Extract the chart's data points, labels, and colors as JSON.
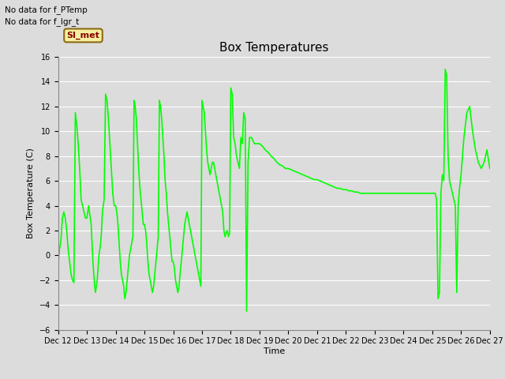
{
  "title": "Box Temperatures",
  "ylabel": "Box Temperature (C)",
  "xlabel": "Time",
  "ylim": [
    -6,
    16
  ],
  "yticks": [
    -6,
    -4,
    -2,
    0,
    2,
    4,
    6,
    8,
    10,
    12,
    14,
    16
  ],
  "line_color": "#00FF00",
  "line_width": 1.2,
  "bg_color": "#DCDCDC",
  "annotations": [
    "No data for f_PTemp",
    "No data for f_lgr_t"
  ],
  "annotation_box_label": "SI_met",
  "x_tick_labels": [
    "Dec 12",
    "Dec 13",
    "Dec 14",
    "Dec 15",
    "Dec 16",
    "Dec 17",
    "Dec 18",
    "Dec 19",
    "Dec 20",
    "Dec 21",
    "Dec 22",
    "Dec 23",
    "Dec 24",
    "Dec 25",
    "Dec 26",
    "Dec 27"
  ],
  "data_x": [
    0.0,
    0.05,
    0.1,
    0.15,
    0.2,
    0.25,
    0.3,
    0.35,
    0.4,
    0.45,
    0.5,
    0.55,
    0.6,
    0.65,
    0.7,
    0.75,
    0.8,
    0.85,
    0.9,
    0.95,
    1.0,
    1.03,
    1.06,
    1.09,
    1.12,
    1.15,
    1.18,
    1.21,
    1.24,
    1.27,
    1.3,
    1.33,
    1.36,
    1.39,
    1.42,
    1.45,
    1.48,
    1.51,
    1.54,
    1.57,
    1.6,
    1.65,
    1.7,
    1.75,
    1.8,
    1.85,
    1.9,
    1.95,
    2.0,
    2.04,
    2.08,
    2.12,
    2.16,
    2.2,
    2.24,
    2.28,
    2.32,
    2.36,
    2.4,
    2.44,
    2.48,
    2.52,
    2.56,
    2.6,
    2.64,
    2.68,
    2.72,
    2.76,
    2.8,
    2.84,
    2.88,
    2.92,
    2.96,
    3.0,
    3.04,
    3.08,
    3.12,
    3.16,
    3.2,
    3.24,
    3.28,
    3.32,
    3.36,
    3.4,
    3.44,
    3.48,
    3.52,
    3.56,
    3.6,
    3.64,
    3.68,
    3.72,
    3.76,
    3.8,
    3.84,
    3.88,
    3.92,
    3.96,
    4.0,
    4.04,
    4.08,
    4.12,
    4.16,
    4.2,
    4.24,
    4.28,
    4.32,
    4.36,
    4.4,
    4.44,
    4.48,
    4.52,
    4.56,
    4.6,
    4.64,
    4.68,
    4.72,
    4.76,
    4.8,
    4.84,
    4.88,
    4.92,
    4.96,
    5.0,
    5.04,
    5.08,
    5.12,
    5.16,
    5.2,
    5.24,
    5.28,
    5.32,
    5.36,
    5.4,
    5.44,
    5.48,
    5.52,
    5.56,
    5.6,
    5.64,
    5.68,
    5.72,
    5.76,
    5.8,
    5.84,
    5.88,
    5.92,
    5.96,
    6.0,
    6.05,
    6.1,
    6.15,
    6.2,
    6.25,
    6.3,
    6.35,
    6.4,
    6.45,
    6.5,
    6.55,
    6.6,
    6.65,
    6.7,
    6.72,
    6.74,
    6.76,
    6.78,
    6.8,
    6.82,
    6.84,
    6.86,
    6.88,
    6.9,
    6.92,
    6.94,
    6.96,
    6.98,
    7.0,
    7.1,
    7.2,
    7.3,
    7.4,
    7.5,
    7.6,
    7.7,
    7.8,
    7.9,
    8.0,
    8.1,
    8.2,
    8.3,
    8.4,
    8.5,
    8.6,
    8.7,
    8.8,
    8.9,
    9.0,
    9.1,
    9.2,
    9.3,
    9.4,
    9.5,
    9.6,
    9.7,
    9.8,
    9.9,
    10.0,
    10.1,
    10.2,
    10.3,
    10.4,
    10.5,
    10.6,
    10.7,
    10.8,
    10.9,
    11.0,
    11.1,
    11.2,
    11.3,
    11.4,
    11.5,
    11.6,
    11.7,
    11.8,
    11.9,
    12.0,
    12.1,
    12.2,
    12.3,
    12.4,
    12.5,
    12.6,
    12.7,
    12.8,
    12.9,
    12.92,
    12.94,
    12.96,
    12.98,
    13.0,
    13.05,
    13.1,
    13.15,
    13.2,
    13.25,
    13.3,
    13.35,
    13.4,
    13.45,
    13.5,
    13.55,
    13.6,
    13.65,
    13.7,
    13.75,
    13.8,
    13.85,
    13.9,
    13.95,
    14.0,
    14.1,
    14.2,
    14.3,
    14.4,
    14.5,
    14.6,
    14.7,
    14.8,
    14.9,
    15.0
  ],
  "data_y": [
    -0.8,
    0.5,
    1.2,
    3.0,
    3.5,
    3.0,
    2.0,
    0.5,
    -0.5,
    -1.5,
    -2.0,
    -2.2,
    11.5,
    10.5,
    9.0,
    7.0,
    4.5,
    4.0,
    3.5,
    3.0,
    3.0,
    3.5,
    4.0,
    3.5,
    3.0,
    2.5,
    1.0,
    -0.5,
    -1.5,
    -2.5,
    -3.0,
    -2.5,
    -2.0,
    -1.0,
    0.0,
    0.5,
    1.0,
    2.0,
    3.5,
    4.0,
    4.5,
    13.0,
    12.5,
    11.0,
    9.0,
    7.0,
    5.0,
    4.0,
    4.0,
    3.5,
    2.5,
    1.0,
    -0.5,
    -1.5,
    -2.0,
    -2.5,
    -3.5,
    -3.0,
    -2.0,
    -1.0,
    0.0,
    0.5,
    1.0,
    1.5,
    12.5,
    12.0,
    11.0,
    9.0,
    7.0,
    5.5,
    4.5,
    3.5,
    2.5,
    2.5,
    2.0,
    1.0,
    -0.5,
    -1.5,
    -2.0,
    -2.5,
    -3.0,
    -2.5,
    -1.5,
    -0.5,
    0.5,
    1.5,
    12.5,
    12.0,
    11.0,
    9.5,
    8.0,
    6.0,
    5.0,
    3.5,
    2.5,
    1.5,
    0.5,
    -0.5,
    -0.5,
    -1.0,
    -2.0,
    -2.5,
    -3.0,
    -2.5,
    -1.5,
    -0.5,
    0.5,
    1.5,
    2.5,
    3.0,
    3.5,
    3.0,
    2.5,
    2.0,
    1.5,
    1.0,
    0.5,
    0.0,
    -0.5,
    -1.0,
    -1.5,
    -2.0,
    -2.5,
    12.5,
    12.0,
    11.5,
    10.0,
    8.5,
    7.5,
    7.0,
    6.5,
    7.0,
    7.5,
    7.5,
    7.0,
    6.5,
    6.0,
    5.5,
    5.0,
    4.5,
    4.0,
    3.5,
    2.0,
    1.5,
    1.8,
    2.0,
    1.5,
    1.8,
    13.5,
    13.0,
    9.5,
    9.0,
    8.0,
    7.5,
    7.0,
    9.5,
    9.0,
    11.5,
    11.0,
    -4.5,
    7.5,
    9.5,
    9.5,
    9.5,
    9.4,
    9.3,
    9.2,
    9.1,
    9.0,
    9.0,
    9.0,
    9.0,
    9.0,
    9.0,
    9.0,
    9.0,
    9.0,
    9.0,
    8.8,
    8.5,
    8.3,
    8.0,
    7.8,
    7.5,
    7.3,
    7.2,
    7.0,
    7.0,
    6.9,
    6.8,
    6.7,
    6.6,
    6.5,
    6.4,
    6.3,
    6.2,
    6.1,
    6.1,
    6.0,
    5.9,
    5.8,
    5.7,
    5.6,
    5.5,
    5.4,
    5.4,
    5.3,
    5.3,
    5.2,
    5.2,
    5.1,
    5.1,
    5.0,
    5.0,
    5.0,
    5.0,
    5.0,
    5.0,
    5.0,
    5.0,
    5.0,
    5.0,
    5.0,
    5.0,
    5.0,
    5.0,
    5.0,
    5.0,
    5.0,
    5.0,
    5.0,
    5.0,
    5.0,
    5.0,
    5.0,
    5.0,
    5.0,
    5.0,
    5.0,
    5.0,
    5.0,
    5.0,
    5.0,
    5.0,
    4.5,
    -3.5,
    -3.0,
    5.0,
    6.5,
    6.0,
    15.0,
    14.5,
    8.0,
    6.0,
    5.5,
    5.0,
    4.5,
    4.0,
    -3.0,
    4.0,
    5.5,
    6.5,
    9.5,
    11.5,
    12.0,
    10.0,
    8.5,
    7.5,
    7.0,
    7.5,
    8.5,
    7.0
  ]
}
